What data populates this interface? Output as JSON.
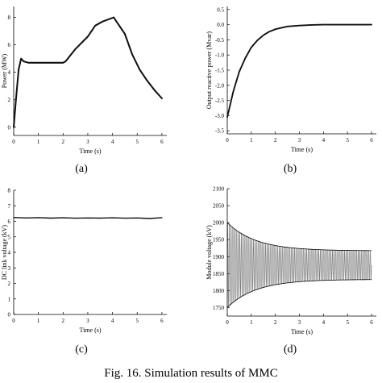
{
  "figure": {
    "caption": "Fig. 16. Simulation results of MMC"
  },
  "chart_data": [
    {
      "type": "line",
      "panel_label": "(a)",
      "xlabel": "Time (s)",
      "ylabel": "Power (MW)",
      "xlim": [
        0,
        6.2
      ],
      "ylim": [
        -0.6,
        8.8
      ],
      "xticks": [
        0,
        1,
        2,
        3,
        4,
        5,
        6
      ],
      "yticks": [
        0,
        2,
        4,
        6,
        8
      ],
      "series": [
        {
          "x": [
            0,
            0.08,
            0.2,
            0.3,
            0.4,
            0.6,
            1.0,
            1.5,
            2.0,
            2.1,
            2.5,
            3.0,
            3.3,
            3.6,
            3.9,
            4.05,
            4.2,
            4.5,
            4.8,
            5.1,
            5.4,
            5.7,
            6.0
          ],
          "y": [
            0,
            1.8,
            4.2,
            5.0,
            4.8,
            4.7,
            4.7,
            4.7,
            4.7,
            4.8,
            5.7,
            6.6,
            7.4,
            7.7,
            7.9,
            8.0,
            7.6,
            6.8,
            5.3,
            4.2,
            3.4,
            2.7,
            2.1
          ],
          "band": 0.12
        }
      ]
    },
    {
      "type": "line",
      "panel_label": "(b)",
      "xlabel": "Time (s)",
      "ylabel": "Output reactive power (Mvar)",
      "xlim": [
        0,
        6.2
      ],
      "ylim": [
        -3.6,
        0.6
      ],
      "xticks": [
        0,
        1,
        2,
        3,
        4,
        5,
        6
      ],
      "yticks": [
        0.5,
        0.0,
        -0.5,
        -1.0,
        -1.5,
        -2.0,
        -2.5,
        -3.0,
        -3.5
      ],
      "ytick_labels": [
        "0.5",
        "0.0",
        "-0.5",
        "-1.0",
        "-1.5",
        "-2.0",
        "-2.5",
        "-3.0",
        "-3.5"
      ],
      "series": [
        {
          "x": [
            0,
            0.25,
            0.5,
            0.75,
            1.0,
            1.25,
            1.5,
            1.75,
            2.0,
            2.5,
            3.0,
            3.5,
            4.0,
            5.0,
            6.0
          ],
          "y": [
            -3.05,
            -2.2,
            -1.55,
            -1.1,
            -0.75,
            -0.52,
            -0.35,
            -0.23,
            -0.15,
            -0.06,
            -0.03,
            -0.01,
            0.0,
            0.0,
            0.0
          ],
          "band": 0.05
        }
      ]
    },
    {
      "type": "line",
      "panel_label": "(c)",
      "xlabel": "Time (s)",
      "ylabel": "DC link voltage (kV)",
      "xlim": [
        0,
        6.2
      ],
      "ylim": [
        0,
        8
      ],
      "xticks": [
        0,
        1,
        2,
        3,
        4,
        5,
        6
      ],
      "yticks": [
        0,
        1,
        2,
        3,
        4,
        5,
        6,
        7,
        8
      ],
      "series": [
        {
          "x": [
            0,
            0.5,
            1.0,
            1.5,
            2.0,
            2.5,
            3.0,
            3.5,
            4.0,
            4.5,
            5.0,
            5.5,
            6.0
          ],
          "y": [
            6.25,
            6.22,
            6.24,
            6.21,
            6.23,
            6.2,
            6.22,
            6.21,
            6.23,
            6.2,
            6.22,
            6.18,
            6.24
          ],
          "band": 0.05
        }
      ]
    },
    {
      "type": "line",
      "panel_label": "(d)",
      "xlabel": "Time (s)",
      "ylabel": "Module voltage (kV)",
      "xlim": [
        0,
        6.2
      ],
      "ylim": [
        1725,
        2100
      ],
      "xticks": [
        0,
        1,
        2,
        3,
        4,
        5,
        6
      ],
      "yticks": [
        1750,
        1800,
        1850,
        1900,
        1950,
        2000,
        2050,
        2100
      ],
      "series": [
        {
          "center": 1875,
          "amp_initial": 125,
          "amp_final": 42,
          "tau": 1.2,
          "cycles": 95
        }
      ]
    }
  ]
}
